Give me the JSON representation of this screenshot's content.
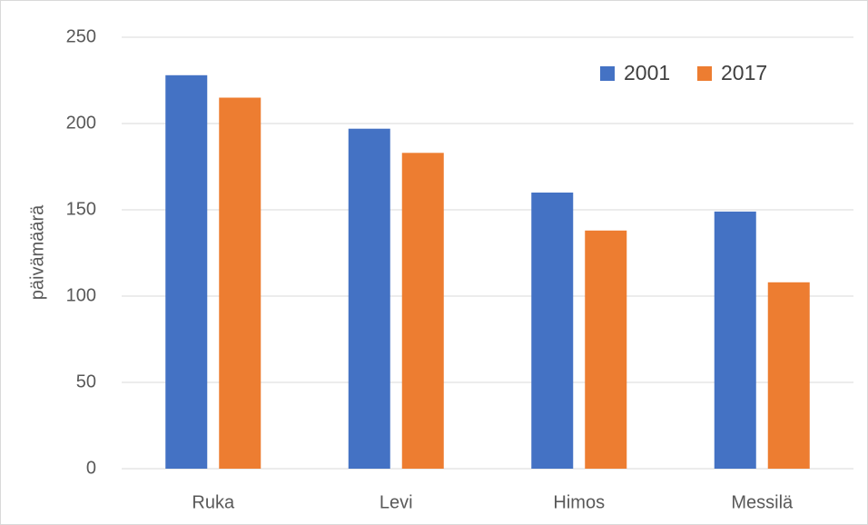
{
  "chart_data": {
    "type": "bar",
    "categories": [
      "Ruka",
      "Levi",
      "Himos",
      "Messilä"
    ],
    "series": [
      {
        "name": "2001",
        "color": "#4472c4",
        "values": [
          228,
          197,
          160,
          149
        ]
      },
      {
        "name": "2017",
        "color": "#ed7d31",
        "values": [
          215,
          183,
          138,
          108
        ]
      }
    ],
    "ylabel": "päivämäärä",
    "ylim": [
      0,
      250
    ],
    "yticks": [
      0,
      50,
      100,
      150,
      200,
      250
    ],
    "grid": true,
    "legend": "top-right"
  }
}
